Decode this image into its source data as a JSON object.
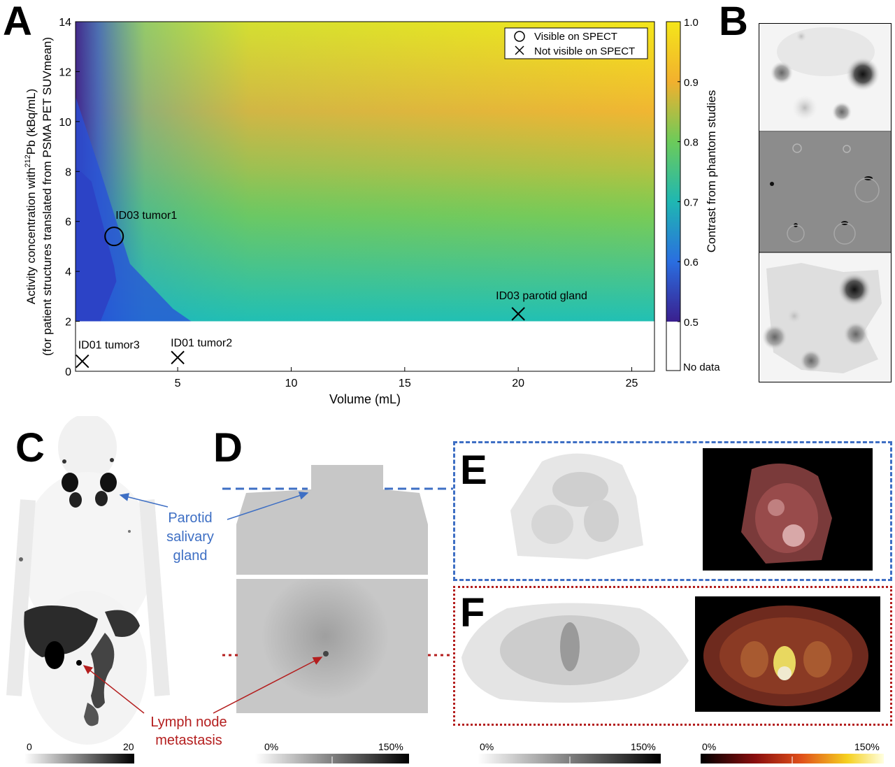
{
  "panel_letters": {
    "a": "A",
    "b": "B",
    "c": "C",
    "d": "D",
    "e": "E",
    "f": "F"
  },
  "chart_data": {
    "type": "heatmap",
    "xlabel": "Volume (mL)",
    "ylabel_line1": "Activity concentration with",
    "ylabel_sup": "212",
    "ylabel_line1_rest": "Pb (kBq/mL)",
    "ylabel_line2": "(for patient structures translated from PSMA PET SUVmean)",
    "xlim": [
      0.5,
      26
    ],
    "ylim": [
      0,
      14
    ],
    "xticks": [
      5,
      10,
      15,
      20,
      25
    ],
    "yticks": [
      0,
      2,
      4,
      6,
      8,
      10,
      12,
      14
    ],
    "data_region_ymin": 2,
    "colorbar": {
      "label": "Contrast from phantom studies",
      "range": [
        0.5,
        1.0
      ],
      "ticks": [
        "1.0",
        "0.9",
        "0.8",
        "0.7",
        "0.6",
        "0.5"
      ],
      "no_data_label": "No data"
    },
    "legend": {
      "placement": "top-right",
      "entries": [
        {
          "marker": "circle",
          "label": "Visible on SPECT"
        },
        {
          "marker": "x",
          "label": "Not visible on SPECT"
        }
      ]
    },
    "points": [
      {
        "label": "ID03 tumor1",
        "x": 2.2,
        "y": 5.4,
        "marker": "circle"
      },
      {
        "label": "ID03 parotid gland",
        "x": 20,
        "y": 2.3,
        "marker": "x"
      },
      {
        "label": "ID01 tumor3",
        "x": 0.8,
        "y": 0.4,
        "marker": "x"
      },
      {
        "label": "ID01 tumor2",
        "x": 5,
        "y": 0.55,
        "marker": "x"
      }
    ],
    "colors": {
      "low": "#3a1f8e",
      "mid": "#1fb7b2",
      "high": "#f4e61a"
    }
  },
  "annotations": {
    "parotid": [
      "Parotid",
      "salivary",
      "gland"
    ],
    "lymph": [
      "Lymph node",
      "metastasis"
    ],
    "parotid_color": "#3e6fc4",
    "lymph_color": "#b41e1e"
  },
  "scalebars": {
    "c": {
      "min": "0",
      "max": "20"
    },
    "d": {
      "min": "0%",
      "max": "150%"
    },
    "e": {
      "min": "0%",
      "max": "150%"
    },
    "f": {
      "min": "0%",
      "max": "150%"
    }
  }
}
